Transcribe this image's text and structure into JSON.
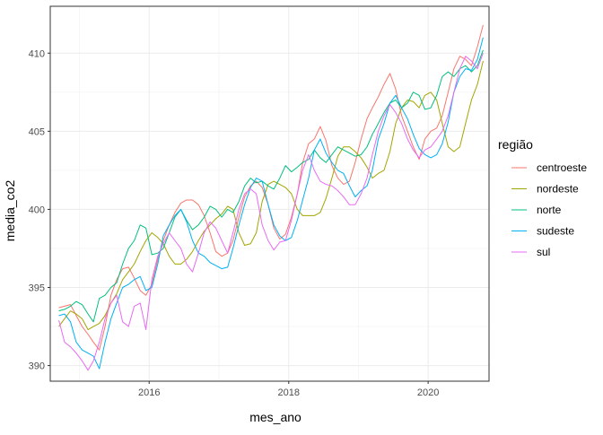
{
  "chart_data": {
    "type": "line",
    "title": "",
    "xlabel": "mes_ano",
    "ylabel": "media_co2",
    "xlim": [
      "2014-08-01",
      "2020-11-15"
    ],
    "ylim": [
      389,
      413
    ],
    "x_ticks": [
      "2016",
      "2018",
      "2020"
    ],
    "x_tick_dates": [
      "2016-01-01",
      "2018-01-01",
      "2020-01-01"
    ],
    "y_ticks": [
      390,
      395,
      400,
      405,
      410
    ],
    "grid": true,
    "legend": {
      "title": "região",
      "position": "right"
    },
    "x": [
      "2014-09",
      "2014-10",
      "2014-11",
      "2014-12",
      "2015-01",
      "2015-02",
      "2015-03",
      "2015-04",
      "2015-05",
      "2015-06",
      "2015-07",
      "2015-08",
      "2015-09",
      "2015-10",
      "2015-11",
      "2015-12",
      "2016-01",
      "2016-02",
      "2016-03",
      "2016-04",
      "2016-05",
      "2016-06",
      "2016-07",
      "2016-08",
      "2016-09",
      "2016-10",
      "2016-11",
      "2016-12",
      "2017-01",
      "2017-02",
      "2017-03",
      "2017-04",
      "2017-05",
      "2017-06",
      "2017-07",
      "2017-08",
      "2017-09",
      "2017-10",
      "2017-11",
      "2017-12",
      "2018-01",
      "2018-02",
      "2018-03",
      "2018-04",
      "2018-05",
      "2018-06",
      "2018-07",
      "2018-08",
      "2018-09",
      "2018-10",
      "2018-11",
      "2018-12",
      "2019-01",
      "2019-02",
      "2019-03",
      "2019-04",
      "2019-05",
      "2019-06",
      "2019-07",
      "2019-08",
      "2019-09",
      "2019-10",
      "2019-11",
      "2019-12",
      "2020-01",
      "2020-02",
      "2020-03",
      "2020-04",
      "2020-05",
      "2020-06",
      "2020-07",
      "2020-08",
      "2020-09",
      "2020-10"
    ],
    "series": [
      {
        "name": "centroeste",
        "color": "#F8766D",
        "values": [
          393.7,
          393.8,
          393.9,
          393.2,
          392.5,
          392.0,
          391.5,
          391.0,
          392.5,
          394.5,
          395.5,
          396.2,
          396.3,
          395.6,
          394.8,
          394.5,
          395.2,
          396.8,
          398.0,
          399.0,
          399.8,
          400.4,
          400.6,
          400.6,
          400.3,
          399.6,
          398.5,
          397.3,
          397.0,
          397.2,
          398.0,
          399.5,
          400.8,
          401.5,
          401.8,
          401.4,
          400.3,
          398.8,
          398.1,
          398.4,
          399.5,
          401.0,
          403.0,
          404.2,
          404.5,
          405.3,
          404.4,
          402.8,
          402.0,
          401.6,
          401.8,
          403.0,
          404.5,
          405.8,
          406.5,
          407.2,
          408.0,
          408.7,
          407.7,
          406.0,
          405.0,
          404.0,
          403.2,
          404.5,
          405.0,
          405.2,
          406.0,
          407.5,
          409.0,
          409.8,
          409.6,
          409.2,
          410.4,
          411.8
        ]
      },
      {
        "name": "nordeste",
        "color": "#A3A500",
        "values": [
          392.5,
          393.0,
          393.5,
          393.3,
          393.0,
          392.3,
          392.5,
          392.7,
          393.2,
          394.0,
          394.6,
          395.5,
          396.0,
          396.5,
          397.3,
          398.0,
          398.5,
          398.2,
          397.8,
          397.0,
          396.5,
          396.5,
          396.8,
          397.3,
          398.0,
          398.6,
          399.0,
          399.4,
          399.7,
          400.2,
          400.0,
          398.5,
          397.7,
          397.8,
          398.5,
          400.5,
          401.6,
          401.8,
          401.6,
          401.4,
          401.0,
          400.0,
          399.6,
          399.6,
          399.6,
          399.8,
          400.7,
          402.0,
          403.4,
          404.0,
          404.0,
          403.7,
          403.3,
          402.7,
          402.0,
          402.3,
          402.5,
          403.7,
          405.5,
          406.5,
          407.0,
          406.9,
          406.5,
          407.3,
          407.5,
          407.0,
          405.5,
          404.0,
          403.7,
          404.0,
          405.5,
          407.0,
          408.0,
          409.5
        ]
      },
      {
        "name": "norte",
        "color": "#00BF7D",
        "values": [
          393.5,
          393.6,
          393.8,
          394.1,
          393.9,
          393.3,
          392.8,
          394.3,
          394.5,
          395.0,
          395.3,
          396.5,
          397.5,
          398.0,
          399.0,
          398.8,
          397.1,
          397.2,
          397.5,
          398.5,
          399.5,
          400.0,
          399.3,
          398.7,
          399.0,
          399.5,
          400.2,
          400.0,
          399.5,
          400.0,
          399.8,
          400.5,
          401.5,
          402.0,
          401.7,
          401.8,
          401.5,
          401.3,
          402.0,
          402.8,
          402.4,
          402.7,
          403.0,
          403.2,
          403.8,
          403.3,
          403.0,
          403.5,
          404.0,
          403.8,
          403.6,
          403.4,
          403.5,
          404.0,
          404.8,
          405.5,
          406.2,
          406.8,
          407.0,
          406.5,
          406.8,
          407.5,
          407.3,
          406.4,
          406.5,
          407.3,
          408.5,
          408.8,
          408.5,
          409.0,
          409.2,
          408.8,
          409.2,
          410.2
        ]
      },
      {
        "name": "sudeste",
        "color": "#00B0F6",
        "values": [
          393.2,
          393.3,
          392.8,
          391.5,
          391.0,
          390.8,
          390.6,
          389.8,
          391.5,
          393.0,
          394.0,
          395.0,
          395.2,
          395.5,
          395.7,
          394.8,
          395.0,
          396.5,
          398.3,
          399.0,
          399.6,
          400.0,
          399.2,
          398.0,
          397.2,
          397.0,
          396.6,
          396.4,
          396.2,
          396.3,
          397.5,
          399.0,
          400.3,
          401.4,
          402.0,
          401.8,
          400.3,
          399.0,
          398.3,
          398.0,
          398.2,
          399.3,
          400.6,
          402.0,
          403.8,
          404.5,
          403.6,
          403.0,
          402.5,
          402.3,
          401.5,
          400.8,
          401.2,
          401.5,
          402.5,
          404.5,
          405.5,
          406.8,
          407.3,
          406.5,
          405.8,
          404.8,
          403.9,
          403.5,
          403.3,
          403.5,
          404.2,
          405.6,
          407.5,
          408.5,
          409.0,
          408.9,
          409.6,
          411.0
        ]
      },
      {
        "name": "sul",
        "color": "#E76BF3",
        "values": [
          392.9,
          391.5,
          391.2,
          390.8,
          390.3,
          389.7,
          390.3,
          391.5,
          393.0,
          394.0,
          394.5,
          392.8,
          392.5,
          393.8,
          394.0,
          392.3,
          395.5,
          397.0,
          397.8,
          398.5,
          398.0,
          397.5,
          396.5,
          396.0,
          397.2,
          398.5,
          399.2,
          398.8,
          398.0,
          397.2,
          398.5,
          400.0,
          401.0,
          401.3,
          401.0,
          399.0,
          398.0,
          397.4,
          397.9,
          398.0,
          399.3,
          401.0,
          402.5,
          403.5,
          402.5,
          401.8,
          401.6,
          401.5,
          401.2,
          400.8,
          400.3,
          400.3,
          401.0,
          402.0,
          403.5,
          405.0,
          406.0,
          406.7,
          406.2,
          405.5,
          404.5,
          403.8,
          403.3,
          403.8,
          404.0,
          404.5,
          405.0,
          406.0,
          407.5,
          409.0,
          409.8,
          409.5,
          409.0,
          410.0
        ]
      }
    ]
  }
}
